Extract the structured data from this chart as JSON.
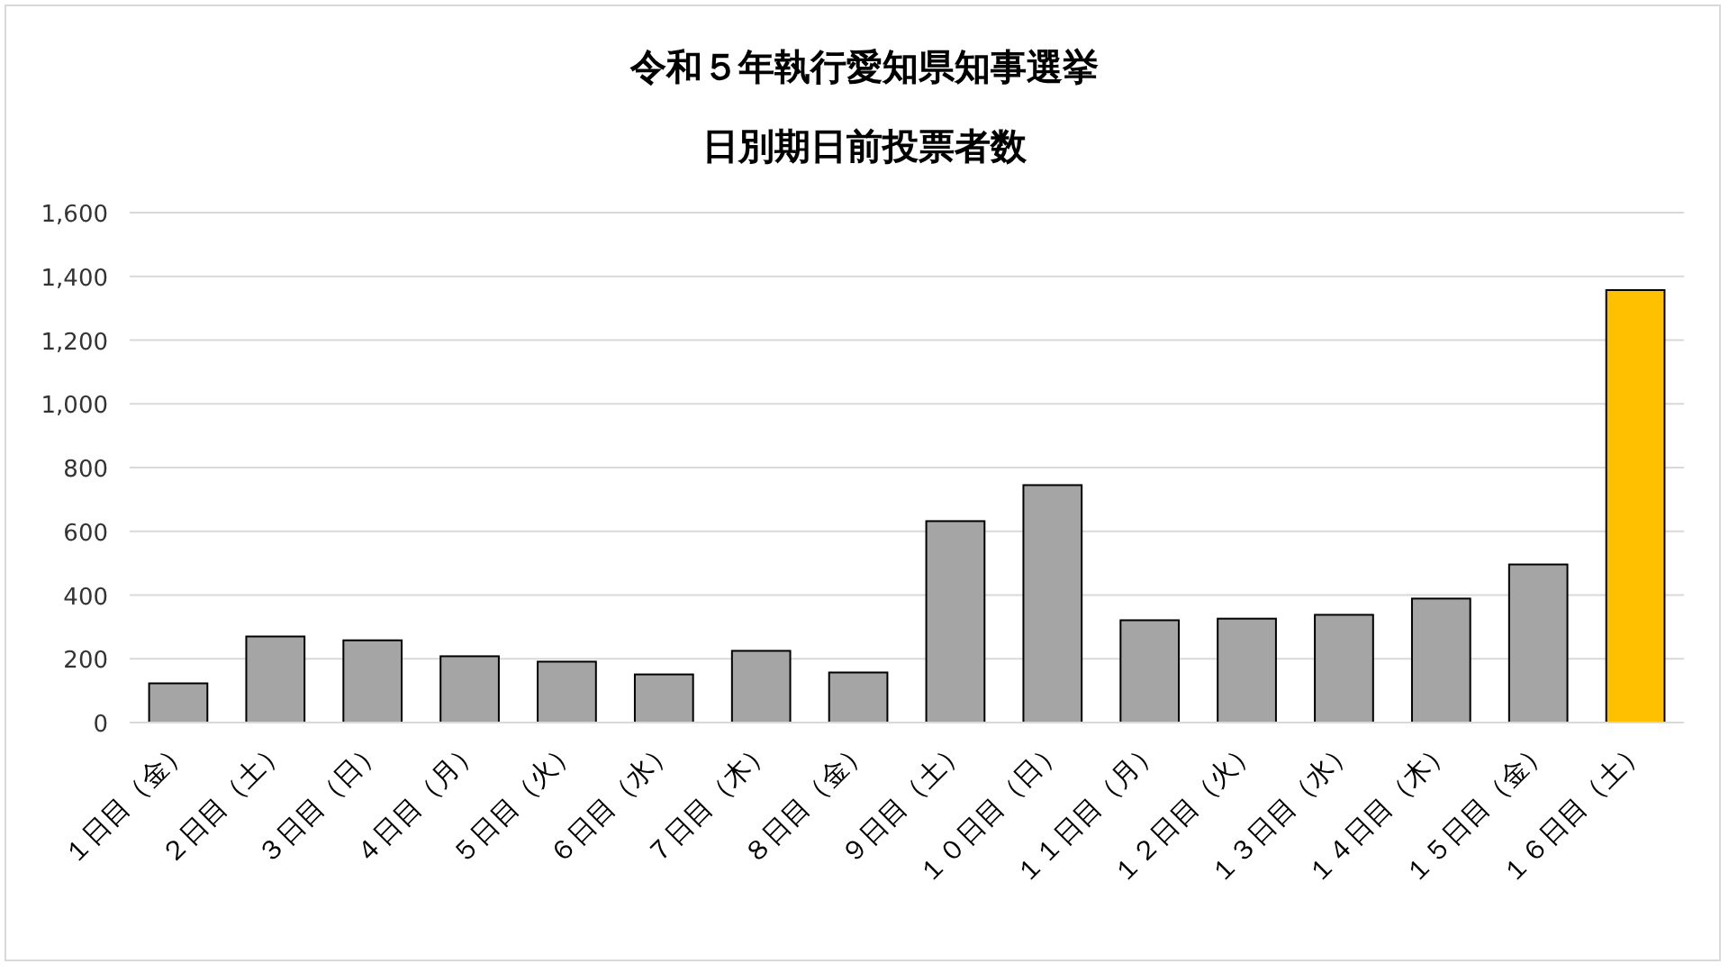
{
  "chart_data": {
    "type": "bar",
    "title": "令和５年執行愛知県知事選挙",
    "subtitle": "日別期日前投票者数",
    "categories": [
      "１日目（金）",
      "２日目（土）",
      "３日目（日）",
      "４日目（月）",
      "５日目（火）",
      "６日目（水）",
      "７日目（木）",
      "８日目（金）",
      "９日目（土）",
      "１０日目（日）",
      "１１日目（月）",
      "１２日目（火）",
      "１３日目（水）",
      "１４日目（木）",
      "１５日目（金）",
      "１６日目（土）"
    ],
    "values": [
      123,
      270,
      258,
      208,
      191,
      151,
      225,
      157,
      632,
      745,
      321,
      326,
      338,
      389,
      496,
      1357
    ],
    "colors": [
      "#a5a5a5",
      "#a5a5a5",
      "#a5a5a5",
      "#a5a5a5",
      "#a5a5a5",
      "#a5a5a5",
      "#a5a5a5",
      "#a5a5a5",
      "#a5a5a5",
      "#a5a5a5",
      "#a5a5a5",
      "#a5a5a5",
      "#a5a5a5",
      "#a5a5a5",
      "#a5a5a5",
      "#ffc000"
    ],
    "ylim": [
      0,
      1600
    ],
    "yticks": [
      {
        "value": 0,
        "label": "0"
      },
      {
        "value": 200,
        "label": "200"
      },
      {
        "value": 400,
        "label": "400"
      },
      {
        "value": 600,
        "label": "600"
      },
      {
        "value": 800,
        "label": "800"
      },
      {
        "value": 1000,
        "label": "1,000"
      },
      {
        "value": 1200,
        "label": "1,200"
      },
      {
        "value": 1400,
        "label": "1,400"
      },
      {
        "value": 1600,
        "label": "1,600"
      }
    ],
    "grid": "y"
  }
}
